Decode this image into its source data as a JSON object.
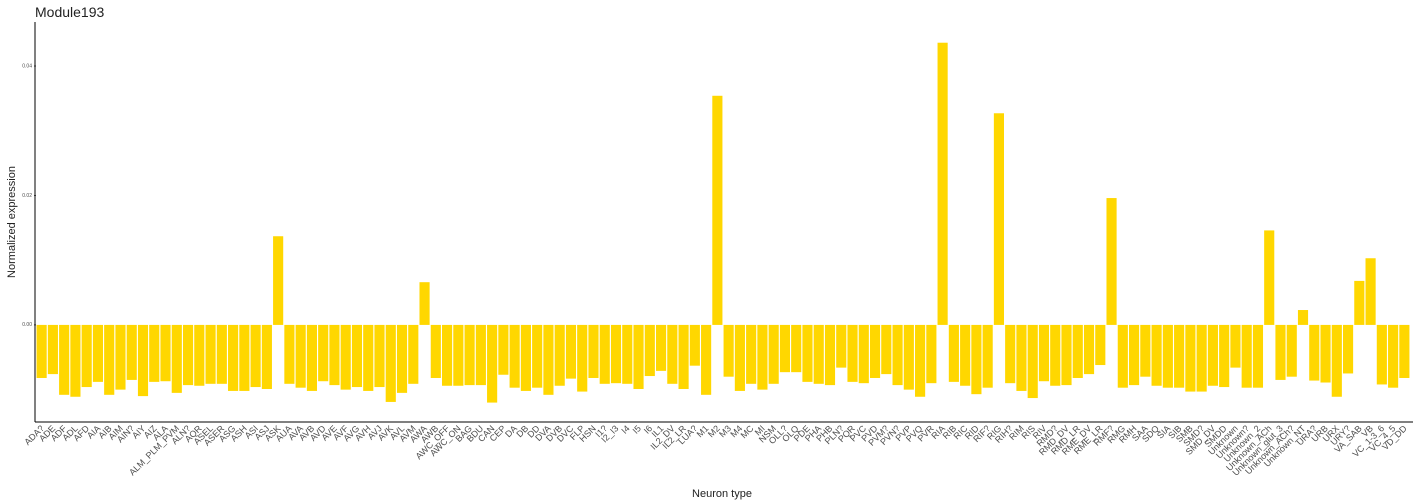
{
  "chart_data": {
    "type": "bar",
    "title": "Module193",
    "x_label": "Neuron type",
    "y_label": "Normalized expression",
    "color": "#FFD700",
    "ylim": [
      -0.015,
      0.0468
    ],
    "yticks": [
      {
        "value": 0,
        "label": "0.00"
      },
      0.02,
      0.04
    ],
    "categories": [
      "ADA?",
      "ADE",
      "ADF",
      "ADL",
      "AFD",
      "AIA",
      "AIB",
      "AIM",
      "AIN?",
      "AIY",
      "AIZ",
      "ALA",
      "ALM_PLM_PVM",
      "ALN?",
      "AQR",
      "ASEL",
      "ASER",
      "ASG",
      "ASH",
      "ASI",
      "ASJ",
      "ASK",
      "AUA",
      "AVA",
      "AVB",
      "AVD",
      "AVE",
      "AVF",
      "AVG",
      "AVH",
      "AVJ",
      "AVK",
      "AVL",
      "AVM",
      "AWA",
      "AWB",
      "AWC_OFF",
      "AWC_ON",
      "BAG",
      "BDU",
      "CAN",
      "CEP",
      "DA",
      "DB",
      "DD",
      "DVA",
      "DVB",
      "DVC",
      "FLP",
      "HSN",
      "I1?",
      "I2_I3",
      "I4",
      "I5",
      "I6",
      "IL1",
      "IL2_DV",
      "IL2_LR",
      "LUA?",
      "M1",
      "M2",
      "M3",
      "M4",
      "MC",
      "MI",
      "NSM",
      "OLL?",
      "OLQ",
      "PDE",
      "PHA",
      "PHB",
      "PLN?",
      "PQR",
      "PVC",
      "PVD",
      "PVM?",
      "PVN?",
      "PVP",
      "PVQ",
      "PVR",
      "RIA",
      "RIB",
      "RIC",
      "RID",
      "RIF?",
      "RIG",
      "RIH?",
      "RIM",
      "RIS",
      "RIV",
      "RMD?",
      "RMD_DV",
      "RMD_LR",
      "RME_DV",
      "RME_LR",
      "RMF?",
      "RMG",
      "RMH",
      "SAA",
      "SDQ",
      "SIA",
      "SIB",
      "SMB",
      "SMD?",
      "SMD_DV",
      "SMDD",
      "Unknown",
      "Unknown?",
      "Unknown_2",
      "Unknown_ACh",
      "Unknown_glut_3",
      "Unknown_ACh?",
      "Unknown_NT",
      "URA?",
      "URB",
      "URX",
      "URY?",
      "VA_SAB",
      "VB",
      "VC_1-3_6",
      "VC_4_5",
      "VD_DD"
    ],
    "values": [
      -0.0082,
      -0.0076,
      -0.0108,
      -0.0111,
      -0.0096,
      -0.0088,
      -0.0108,
      -0.01,
      -0.0085,
      -0.011,
      -0.0088,
      -0.0087,
      -0.0105,
      -0.0093,
      -0.0094,
      -0.0091,
      -0.0091,
      -0.0102,
      -0.0102,
      -0.0096,
      -0.0099,
      0.0137,
      -0.0091,
      -0.0097,
      -0.0102,
      -0.0087,
      -0.0093,
      -0.01,
      -0.0096,
      -0.0102,
      -0.0096,
      -0.0119,
      -0.0105,
      -0.0091,
      0.0066,
      -0.0082,
      -0.0094,
      -0.0094,
      -0.0093,
      -0.0093,
      -0.012,
      -0.0077,
      -0.0097,
      -0.0102,
      -0.0097,
      -0.0108,
      -0.0094,
      -0.0083,
      -0.0103,
      -0.0082,
      -0.0091,
      -0.009,
      -0.0091,
      -0.0099,
      -0.0079,
      -0.0071,
      -0.0091,
      -0.0099,
      -0.0063,
      -0.0108,
      0.0354,
      -0.008,
      -0.0102,
      -0.0091,
      -0.01,
      -0.0091,
      -0.0073,
      -0.0073,
      -0.0088,
      -0.0091,
      -0.0093,
      -0.0066,
      -0.0088,
      -0.009,
      -0.0082,
      -0.0076,
      -0.0093,
      -0.01,
      -0.0111,
      -0.009,
      0.0436,
      -0.0088,
      -0.0094,
      -0.0107,
      -0.0097,
      0.0327,
      -0.009,
      -0.0102,
      -0.0113,
      -0.0087,
      -0.0094,
      -0.0093,
      -0.0082,
      -0.0076,
      -0.0062,
      0.0196,
      -0.0097,
      -0.0093,
      -0.008,
      -0.0094,
      -0.0097,
      -0.0097,
      -0.0103,
      -0.0103,
      -0.0094,
      -0.0096,
      -0.0066,
      -0.0097,
      -0.0097,
      0.0146,
      -0.0085,
      -0.008,
      0.0023,
      -0.0086,
      -0.0089,
      -0.0111,
      -0.0075,
      0.0068,
      0.0103,
      -0.0092,
      -0.0097,
      -0.0082
    ]
  }
}
